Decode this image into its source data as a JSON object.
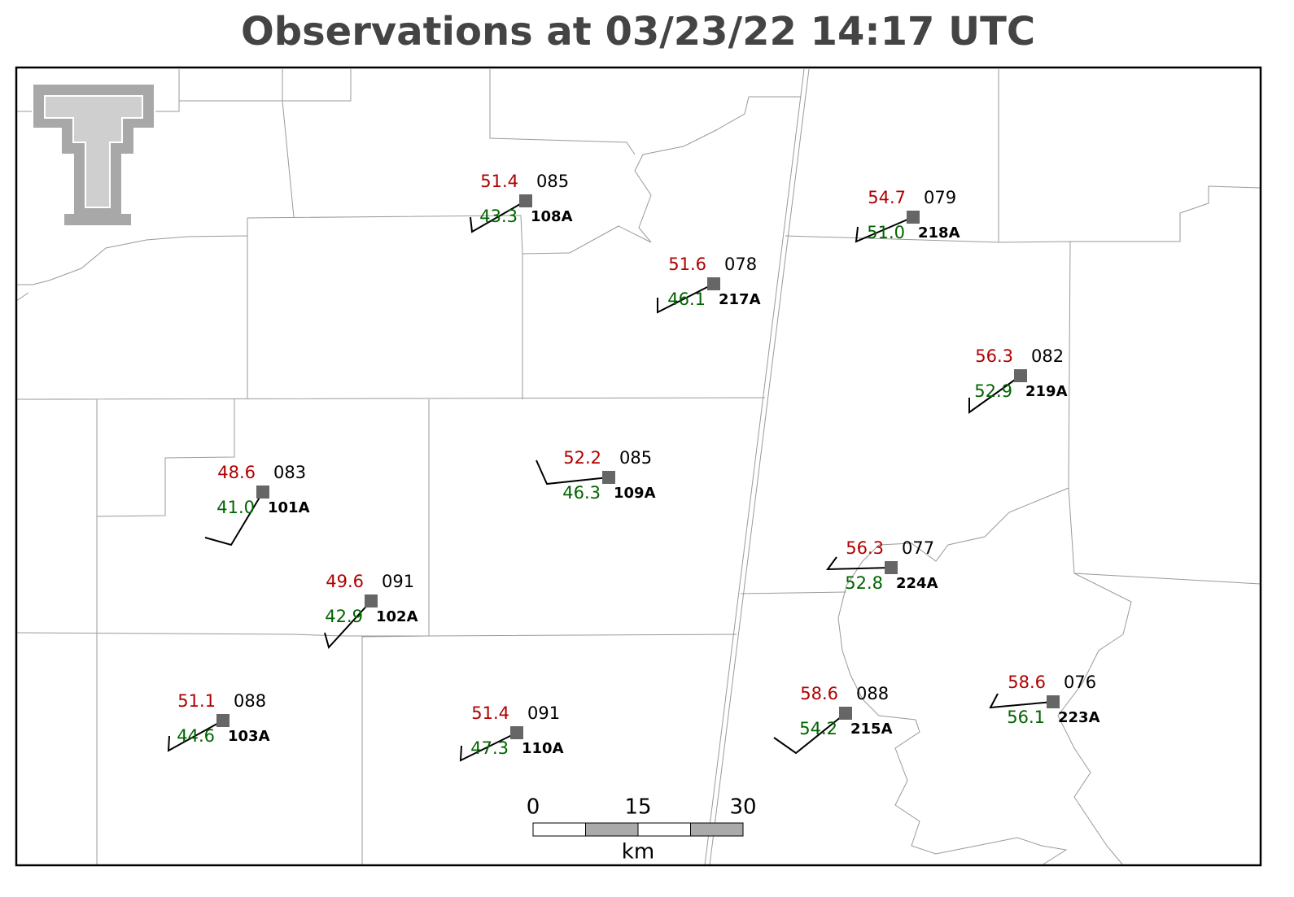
{
  "title": "Observations at 03/23/22 14:17 UTC",
  "stations": [
    {
      "id": "108A",
      "temperature": "51.4",
      "dewpoint": "43.3",
      "pressure": "085"
    },
    {
      "id": "217A",
      "temperature": "51.6",
      "dewpoint": "46.1",
      "pressure": "078"
    },
    {
      "id": "218A",
      "temperature": "54.7",
      "dewpoint": "51.0",
      "pressure": "079"
    },
    {
      "id": "219A",
      "temperature": "56.3",
      "dewpoint": "52.9",
      "pressure": "082"
    },
    {
      "id": "109A",
      "temperature": "52.2",
      "dewpoint": "46.3",
      "pressure": "085"
    },
    {
      "id": "101A",
      "temperature": "48.6",
      "dewpoint": "41.0",
      "pressure": "083"
    },
    {
      "id": "102A",
      "temperature": "49.6",
      "dewpoint": "42.9",
      "pressure": "091"
    },
    {
      "id": "224A",
      "temperature": "56.3",
      "dewpoint": "52.8",
      "pressure": "077"
    },
    {
      "id": "103A",
      "temperature": "51.1",
      "dewpoint": "44.6",
      "pressure": "088"
    },
    {
      "id": "110A",
      "temperature": "51.4",
      "dewpoint": "47.3",
      "pressure": "091"
    },
    {
      "id": "215A",
      "temperature": "58.6",
      "dewpoint": "54.2",
      "pressure": "088"
    },
    {
      "id": "223A",
      "temperature": "58.6",
      "dewpoint": "56.1",
      "pressure": "076"
    }
  ],
  "scale_bar": {
    "labels": [
      "0",
      "15",
      "30"
    ],
    "unit": "km"
  }
}
